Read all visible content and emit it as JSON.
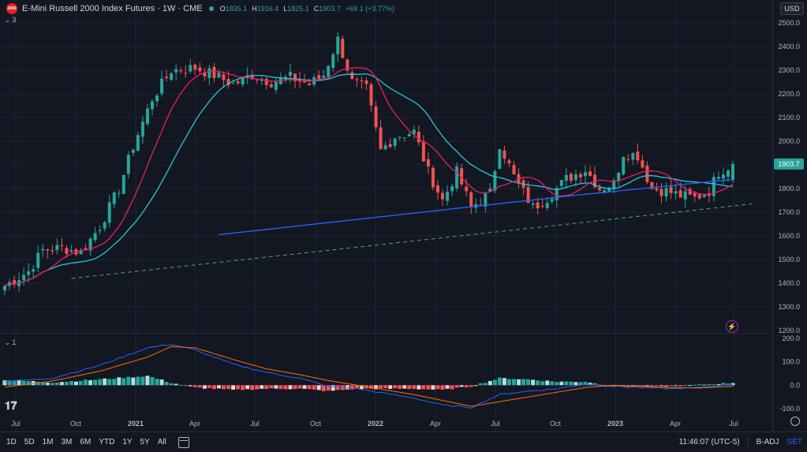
{
  "legend": {
    "symbol_badge": "2000",
    "title": "E-Mini Russell 2000 Index Futures · 1W · CME",
    "o_label": "O",
    "o_value": "1835.1",
    "h_label": "H",
    "h_value": "1916.4",
    "l_label": "L",
    "l_value": "1825.1",
    "c_label": "C",
    "c_value": "1903.7",
    "change": "+69.1 (+3.77%)",
    "indicator_count": "3",
    "macd_indicator_count": "1"
  },
  "currency": "USD",
  "price_axis": {
    "labels": [
      "2500.0",
      "2400.0",
      "2300.0",
      "2200.0",
      "2100.0",
      "2000.0",
      "1900.0",
      "1800.0",
      "1700.0",
      "1600.0",
      "1500.0",
      "1400.0",
      "1300.0",
      "1200.0"
    ],
    "current_price": "1903.7"
  },
  "macd_axis": {
    "labels": [
      "200.0",
      "100.0",
      "0.0",
      "-100.0"
    ]
  },
  "time_axis": {
    "labels": [
      "Jul",
      "Oct",
      "2021",
      "Apr",
      "Jul",
      "Oct",
      "2022",
      "Apr",
      "Jul",
      "Oct",
      "2023",
      "Apr",
      "Jul"
    ]
  },
  "bottom_bar": {
    "ranges": [
      "1D",
      "5D",
      "1M",
      "3M",
      "6M",
      "YTD",
      "1Y",
      "5Y",
      "All"
    ],
    "time": "11:46:07 (UTC-5)",
    "badj": "B-ADJ",
    "set": "SET"
  },
  "colors": {
    "up": "#26a69a",
    "down": "#ef5350",
    "ma20": "#e91e63",
    "ma50": "#26c6da",
    "ma200": "#2962ff",
    "macd": "#2962ff",
    "signal": "#ff6d00",
    "trendline": "#4caf50"
  },
  "chart_data": {
    "type": "candlestick",
    "series_note": "weekly candles (approximate shape of the visible price history)",
    "price_range": [
      1180,
      2560
    ],
    "price_anchors": [
      {
        "t": 0,
        "p": 1390
      },
      {
        "t": 5,
        "p": 1450
      },
      {
        "t": 8,
        "p": 1540
      },
      {
        "t": 12,
        "p": 1550
      },
      {
        "t": 16,
        "p": 1530
      },
      {
        "t": 20,
        "p": 1640
      },
      {
        "t": 24,
        "p": 1800
      },
      {
        "t": 27,
        "p": 1980
      },
      {
        "t": 31,
        "p": 2180
      },
      {
        "t": 35,
        "p": 2300
      },
      {
        "t": 40,
        "p": 2310
      },
      {
        "t": 44,
        "p": 2280
      },
      {
        "t": 48,
        "p": 2240
      },
      {
        "t": 52,
        "p": 2280
      },
      {
        "t": 56,
        "p": 2250
      },
      {
        "t": 60,
        "p": 2270
      },
      {
        "t": 64,
        "p": 2240
      },
      {
        "t": 67,
        "p": 2280
      },
      {
        "t": 70,
        "p": 2430
      },
      {
        "t": 73,
        "p": 2250
      },
      {
        "t": 76,
        "p": 2220
      },
      {
        "t": 79,
        "p": 1960
      },
      {
        "t": 82,
        "p": 2020
      },
      {
        "t": 86,
        "p": 2040
      },
      {
        "t": 89,
        "p": 1870
      },
      {
        "t": 92,
        "p": 1750
      },
      {
        "t": 95,
        "p": 1870
      },
      {
        "t": 98,
        "p": 1720
      },
      {
        "t": 102,
        "p": 1780
      },
      {
        "t": 104,
        "p": 1990
      },
      {
        "t": 107,
        "p": 1850
      },
      {
        "t": 111,
        "p": 1720
      },
      {
        "t": 114,
        "p": 1760
      },
      {
        "t": 118,
        "p": 1840
      },
      {
        "t": 122,
        "p": 1880
      },
      {
        "t": 125,
        "p": 1800
      },
      {
        "t": 128,
        "p": 1820
      },
      {
        "t": 130,
        "p": 1950
      },
      {
        "t": 133,
        "p": 1940
      },
      {
        "t": 136,
        "p": 1800
      },
      {
        "t": 139,
        "p": 1790
      },
      {
        "t": 142,
        "p": 1770
      },
      {
        "t": 145,
        "p": 1760
      },
      {
        "t": 148,
        "p": 1790
      },
      {
        "t": 150,
        "p": 1870
      },
      {
        "t": 153,
        "p": 1903.7
      }
    ],
    "ma200_range": {
      "start_t": 45,
      "start_p": 1605
    },
    "trendlines": [
      {
        "t1": 14,
        "p1": 1420,
        "t2": 157,
        "p2": 1735
      }
    ],
    "macd_range": [
      -115,
      200
    ],
    "macd_anchors": [
      {
        "t": 0,
        "macd": 15,
        "signal": -8
      },
      {
        "t": 10,
        "macd": 30,
        "signal": 18
      },
      {
        "t": 20,
        "macd": 85,
        "signal": 60
      },
      {
        "t": 30,
        "macd": 160,
        "signal": 120
      },
      {
        "t": 35,
        "macd": 175,
        "signal": 165
      },
      {
        "t": 40,
        "macd": 150,
        "signal": 160
      },
      {
        "t": 48,
        "macd": 90,
        "signal": 110
      },
      {
        "t": 55,
        "macd": 55,
        "signal": 70
      },
      {
        "t": 62,
        "macd": 30,
        "signal": 45
      },
      {
        "t": 68,
        "macd": -5,
        "signal": 20
      },
      {
        "t": 74,
        "macd": -15,
        "signal": 0
      },
      {
        "t": 80,
        "macd": -35,
        "signal": -20
      },
      {
        "t": 86,
        "macd": -55,
        "signal": -40
      },
      {
        "t": 92,
        "macd": -85,
        "signal": -65
      },
      {
        "t": 98,
        "macd": -95,
        "signal": -90
      },
      {
        "t": 104,
        "macd": -40,
        "signal": -70
      },
      {
        "t": 110,
        "macd": -25,
        "signal": -50
      },
      {
        "t": 116,
        "macd": -15,
        "signal": -30
      },
      {
        "t": 122,
        "macd": 5,
        "signal": -10
      },
      {
        "t": 128,
        "macd": -5,
        "signal": 0
      },
      {
        "t": 134,
        "macd": -10,
        "signal": -5
      },
      {
        "t": 140,
        "macd": -15,
        "signal": -10
      },
      {
        "t": 146,
        "macd": -10,
        "signal": -12
      },
      {
        "t": 153,
        "macd": 5,
        "signal": -5
      }
    ]
  }
}
